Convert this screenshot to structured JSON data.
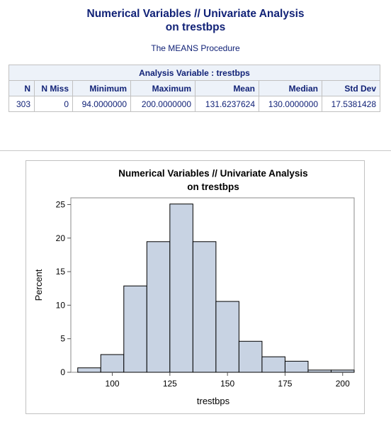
{
  "report": {
    "title_line1": "Numerical Variables // Univariate Analysis",
    "title_line2": "on trestbps",
    "procedure": "The MEANS Procedure"
  },
  "means_table": {
    "caption": "Analysis Variable : trestbps",
    "headers": [
      "N",
      "N Miss",
      "Minimum",
      "Maximum",
      "Mean",
      "Median",
      "Std Dev"
    ],
    "row": [
      "303",
      "0",
      "94.0000000",
      "200.0000000",
      "131.6237624",
      "130.0000000",
      "17.5381428"
    ]
  },
  "chart_data": {
    "type": "bar",
    "subtype": "histogram",
    "title": "Numerical Variables // Univariate Analysis",
    "subtitle": "on trestbps",
    "xlabel": "trestbps",
    "ylabel": "Percent",
    "bin_edges": [
      85,
      95,
      105,
      115,
      125,
      135,
      145,
      155,
      165,
      175,
      185,
      195,
      205
    ],
    "values": [
      0.66,
      2.64,
      12.87,
      19.47,
      25.08,
      19.47,
      10.56,
      4.62,
      2.31,
      1.65,
      0.33,
      0.33
    ],
    "xlim": [
      82,
      205
    ],
    "ylim": [
      0,
      26
    ],
    "xticks": [
      100,
      125,
      150,
      175,
      200
    ],
    "yticks": [
      0,
      5,
      10,
      15,
      20,
      25
    ],
    "bar_fill": "#c8d3e3",
    "bar_stroke": "#000000",
    "grid": false
  }
}
